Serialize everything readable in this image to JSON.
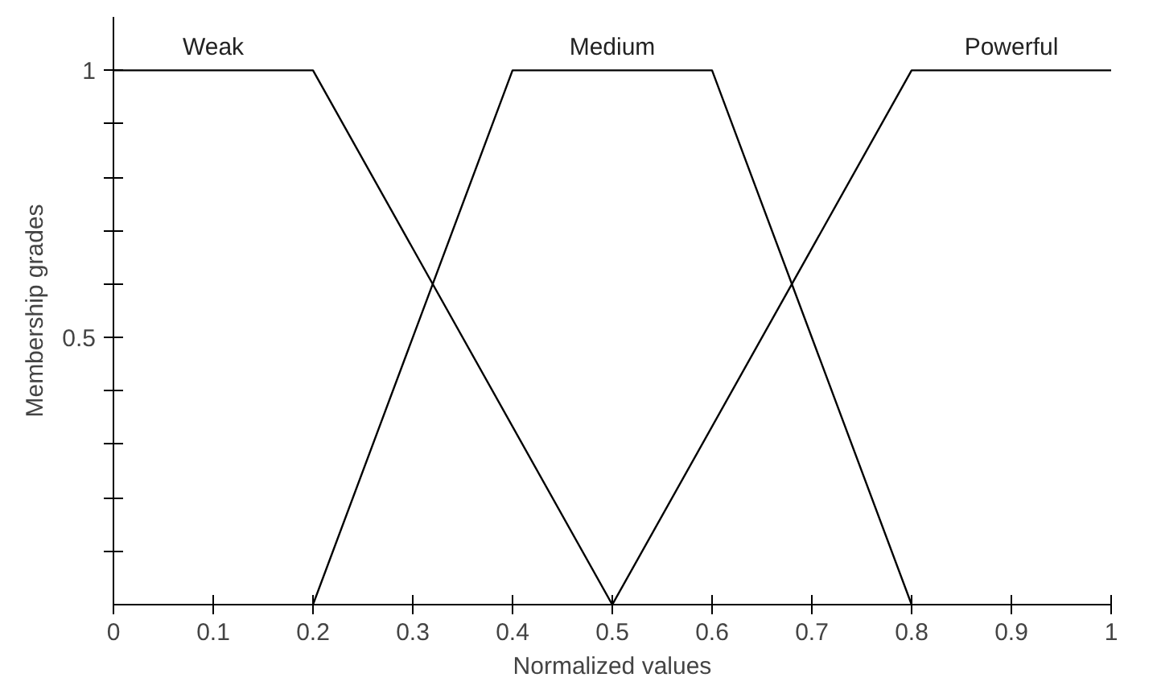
{
  "chart_data": {
    "type": "line",
    "xlabel": "Normalized values",
    "ylabel": "Membership grades",
    "series": [
      {
        "name": "Weak",
        "color": "#000000",
        "x": [
          0,
          0.2,
          0.5
        ],
        "values": [
          1,
          1,
          0
        ]
      },
      {
        "name": "Medium",
        "color": "#000000",
        "x": [
          0.2,
          0.4,
          0.6,
          0.8
        ],
        "values": [
          0,
          1,
          1,
          0
        ]
      },
      {
        "name": "Powerful",
        "color": "#000000",
        "x": [
          0.5,
          0.8,
          1
        ],
        "values": [
          0,
          1,
          1
        ]
      }
    ],
    "xlim": [
      0,
      1
    ],
    "ylim": [
      0,
      1.1
    ],
    "xticks": [
      0,
      0.1,
      0.2,
      0.3,
      0.4,
      0.5,
      0.6,
      0.7,
      0.8,
      0.9,
      1
    ],
    "yticks": [
      {
        "value": 0.1,
        "label": null
      },
      {
        "value": 0.2,
        "label": null
      },
      {
        "value": 0.3,
        "label": null
      },
      {
        "value": 0.4,
        "label": null
      },
      0.5,
      {
        "value": 0.6,
        "label": null
      },
      {
        "value": 0.7,
        "label": null
      },
      {
        "value": 0.8,
        "label": null
      },
      {
        "value": 0.9,
        "label": null
      },
      1
    ],
    "grid": false,
    "legend": false,
    "marker": "none",
    "line_style": "solid"
  }
}
